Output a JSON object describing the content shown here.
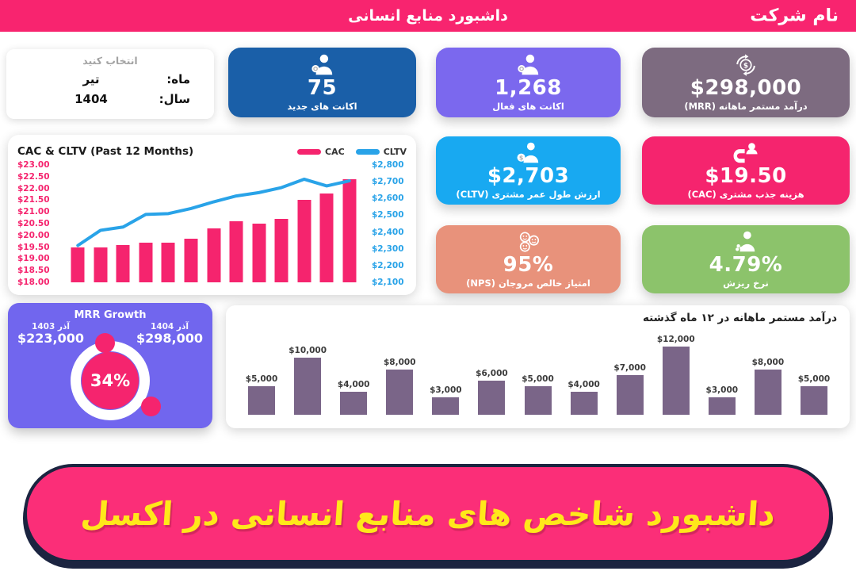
{
  "header": {
    "company_name": "نام شرکت",
    "title": "داشبورد منابع انسانی",
    "bg_color": "#F8246F"
  },
  "selector": {
    "hint": "انتخاب کنید",
    "month_label": "ماه:",
    "month_value": "تیر",
    "year_label": "سال:",
    "year_value": "1404"
  },
  "kpi_cards": [
    {
      "value": "75",
      "label": "اکانت های جدید",
      "color": "#1A5FA8",
      "icon": "new-accounts-user-icon"
    },
    {
      "value": "1,268",
      "label": "اکانت های فعال",
      "color": "#7B68EE",
      "icon": "active-accounts-user-icon"
    },
    {
      "value": "$298,000",
      "label": "درآمد مستمر ماهانه (MRR)",
      "color": "#7D6B80",
      "icon": "dollar-cycle-icon"
    },
    {
      "value": "$2,703",
      "label": "ارزش طول عمر مشتری (CLTV)",
      "color": "#18A9F1",
      "icon": "customer-value-icon"
    },
    {
      "value": "$19.50",
      "label": "هزینه جذب مشتری (CAC)",
      "color": "#F5246E",
      "icon": "magnet-user-icon"
    },
    {
      "value": "95%",
      "label": "امتیاز خالص مروجان (NPS)",
      "color": "#E8927B",
      "icon": "smileys-icon"
    },
    {
      "value": "4.79%",
      "label": "نرخ ریزش",
      "color": "#8CC36B",
      "icon": "churn-user-icon"
    }
  ],
  "mrr_growth": {
    "title": "MRR Growth",
    "prev_period": "آذر 1403",
    "prev_value": "$223,000",
    "curr_period": "آذر 1404",
    "curr_value": "$298,000",
    "growth_pct": "34%",
    "card_color": "#7166EE",
    "accent_color": "#F5246E"
  },
  "banner": {
    "text": "داشبورد شاخص های منابع انسانی در اکسل",
    "bg_color": "#FB2E78",
    "text_color": "#FFE81A",
    "border_color": "#1B2440"
  },
  "chart_data": [
    {
      "type": "combo-bar-line",
      "title": "CAC & CLTV (Past 12 Months)",
      "legend": [
        "CAC",
        "CLTV"
      ],
      "legend_position": "top-right",
      "grid": false,
      "left_axis": {
        "name": "CAC",
        "color": "#F5246E",
        "min": 18,
        "max": 23,
        "ticks": [
          "$23.00",
          "$22.50",
          "$22.00",
          "$21.50",
          "$21.00",
          "$20.50",
          "$20.00",
          "$19.50",
          "$19.00",
          "$18.50",
          "$18.00"
        ]
      },
      "right_axis": {
        "name": "CLTV",
        "color": "#29A3E8",
        "min": 2100,
        "max": 2800,
        "ticks": [
          "$2,800",
          "$2,700",
          "$2,600",
          "$2,500",
          "$2,400",
          "$2,300",
          "$2,200",
          "$2,100"
        ]
      },
      "bars": {
        "name": "CAC",
        "color": "#F5246E",
        "values": [
          19.5,
          19.5,
          19.6,
          19.7,
          19.7,
          19.85,
          20.3,
          20.6,
          20.5,
          20.7,
          21.5,
          21.8,
          22.4
        ]
      },
      "line": {
        "name": "CLTV",
        "color": "#29A3E8",
        "values": [
          2320,
          2410,
          2430,
          2505,
          2510,
          2540,
          2580,
          2615,
          2635,
          2665,
          2715,
          2675,
          2705
        ]
      }
    },
    {
      "type": "bar",
      "title": "درآمد مستمر ماهانه در ۱۲ ماه گذشته",
      "bar_color": "#7A6588",
      "ylim": [
        0,
        12000
      ],
      "grid": false,
      "values": [
        5000,
        10000,
        4000,
        8000,
        3000,
        6000,
        5000,
        4000,
        7000,
        12000,
        3000,
        8000,
        5000
      ],
      "labels": [
        "$5,000",
        "$10,000",
        "$4,000",
        "$8,000",
        "$3,000",
        "$6,000",
        "$5,000",
        "$4,000",
        "$7,000",
        "$12,000",
        "$3,000",
        "$8,000",
        "$5,000"
      ]
    }
  ]
}
